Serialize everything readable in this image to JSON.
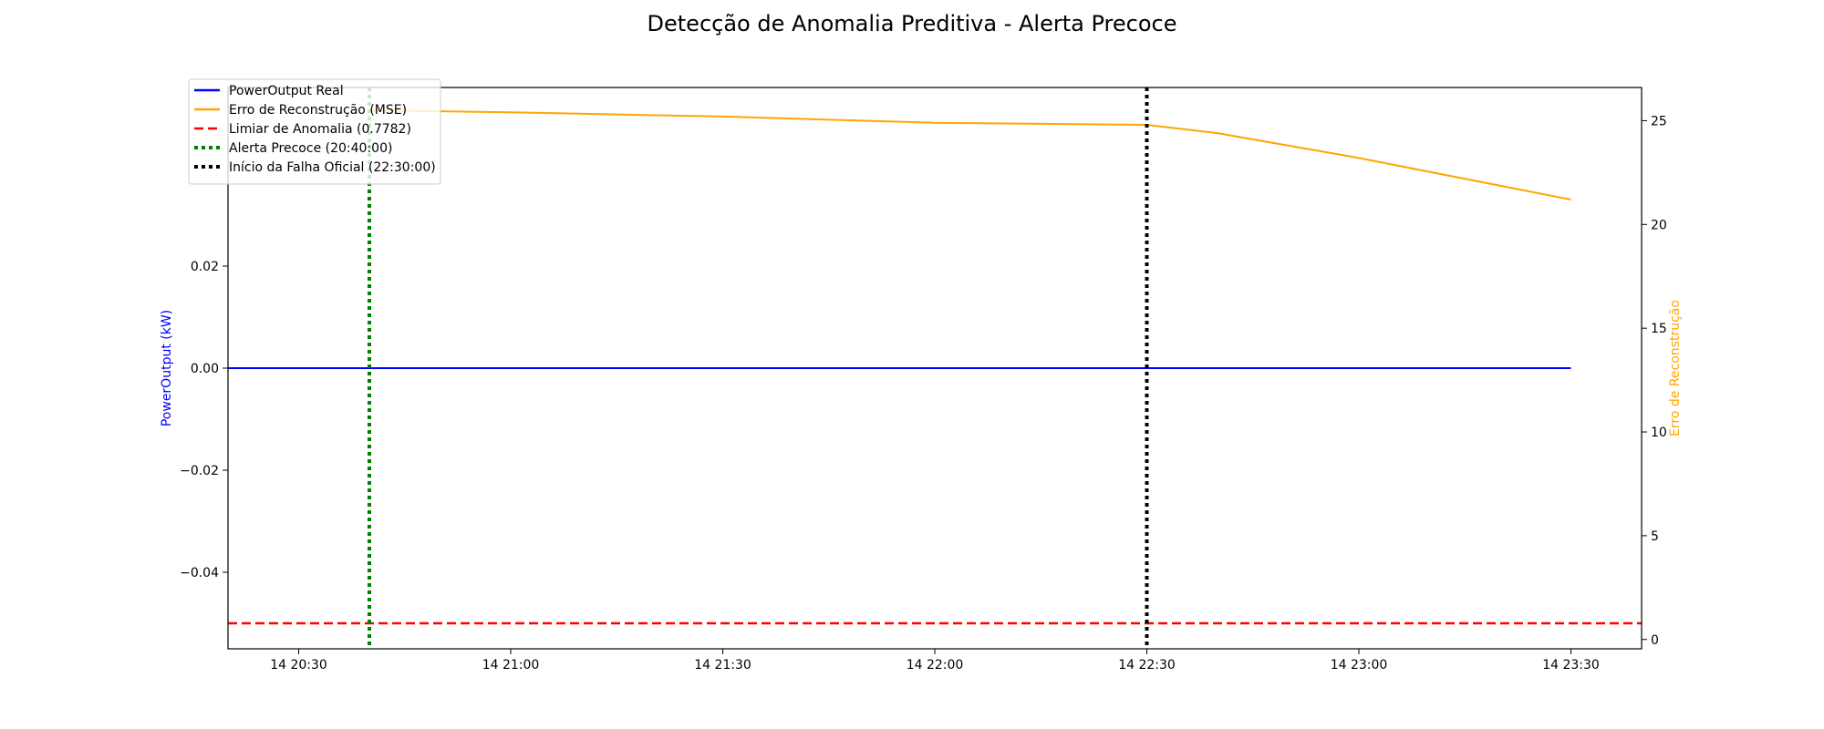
{
  "chart_data": {
    "type": "line",
    "title": "Detecção de Anomalia Preditiva - Alerta Precoce",
    "y_left": {
      "label": "PowerOutput (kW)",
      "color": "#0000ff",
      "lim": [
        -0.055,
        0.055
      ],
      "ticks": [
        -0.04,
        -0.02,
        0.0,
        0.02
      ],
      "tick_labels": [
        "−0.04",
        "−0.02",
        "0.00",
        "0.02"
      ]
    },
    "y_right": {
      "label": "Erro de Reconstrução",
      "color": "#ffa500",
      "lim": [
        -0.45,
        26.6
      ],
      "ticks": [
        0,
        5,
        10,
        15,
        20,
        25
      ],
      "tick_labels": [
        "0",
        "5",
        "10",
        "15",
        "20",
        "25"
      ]
    },
    "x_axis": {
      "type": "time",
      "range": [
        "20:20",
        "23:40"
      ],
      "ticks": [
        "20:30",
        "21:00",
        "21:30",
        "22:00",
        "22:30",
        "23:00",
        "23:30"
      ],
      "tick_labels": [
        "14 20:30",
        "14 21:00",
        "14 21:30",
        "14 22:00",
        "14 22:30",
        "14 23:00",
        "14 23:30"
      ]
    },
    "series": [
      {
        "name": "PowerOutput Real",
        "axis": "left",
        "color": "#0000ff",
        "style": "solid",
        "x": [
          "20:20",
          "23:30"
        ],
        "y": [
          0.0,
          0.0
        ]
      },
      {
        "name": "Erro de Reconstrução (MSE)",
        "axis": "right",
        "color": "#ffa500",
        "style": "solid",
        "x": [
          "20:40",
          "21:00",
          "21:30",
          "22:00",
          "22:30",
          "22:40",
          "23:00",
          "23:30"
        ],
        "y": [
          25.5,
          25.4,
          25.2,
          24.9,
          24.8,
          24.4,
          23.2,
          21.2
        ]
      }
    ],
    "threshold": {
      "name": "Limiar de Anomalia (0.7782)",
      "axis": "right",
      "value": 0.7782,
      "color": "#ff0000",
      "style": "dashed"
    },
    "vlines": [
      {
        "name": "Alerta Precoce (20:40:00)",
        "x": "20:40",
        "color": "#008000",
        "style": "dotted"
      },
      {
        "name": "Início da Falha Oficial (22:30:00)",
        "x": "22:30",
        "color": "#000000",
        "style": "dotted"
      }
    ],
    "legend": {
      "position": "top-left",
      "entries": [
        {
          "label": "PowerOutput Real",
          "color": "#0000ff",
          "style": "solid"
        },
        {
          "label": "Erro de Reconstrução (MSE)",
          "color": "#ffa500",
          "style": "solid"
        },
        {
          "label": "Limiar de Anomalia (0.7782)",
          "color": "#ff0000",
          "style": "dashed"
        },
        {
          "label": "Alerta Precoce (20:40:00)",
          "color": "#008000",
          "style": "dotted"
        },
        {
          "label": "Início da Falha Oficial (22:30:00)",
          "color": "#000000",
          "style": "dotted"
        }
      ]
    },
    "grid": false
  }
}
